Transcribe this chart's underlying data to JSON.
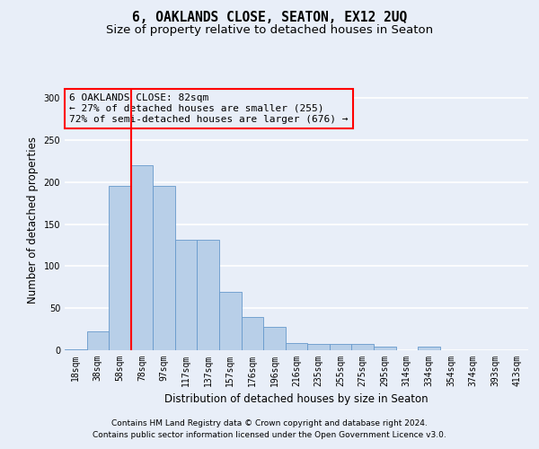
{
  "title": "6, OAKLANDS CLOSE, SEATON, EX12 2UQ",
  "subtitle": "Size of property relative to detached houses in Seaton",
  "xlabel": "Distribution of detached houses by size in Seaton",
  "ylabel": "Number of detached properties",
  "categories": [
    "18sqm",
    "38sqm",
    "58sqm",
    "78sqm",
    "97sqm",
    "117sqm",
    "137sqm",
    "157sqm",
    "176sqm",
    "196sqm",
    "216sqm",
    "235sqm",
    "255sqm",
    "275sqm",
    "295sqm",
    "314sqm",
    "334sqm",
    "354sqm",
    "374sqm",
    "393sqm",
    "413sqm"
  ],
  "values": [
    1,
    22,
    196,
    220,
    196,
    132,
    132,
    70,
    40,
    28,
    9,
    8,
    7,
    7,
    4,
    0,
    4,
    0,
    0,
    0,
    0
  ],
  "bar_color": "#b8cfe8",
  "bar_edge_color": "#6699cc",
  "red_line_index": 3,
  "annotation_text": "6 OAKLANDS CLOSE: 82sqm\n← 27% of detached houses are smaller (255)\n72% of semi-detached houses are larger (676) →",
  "ylim": [
    0,
    310
  ],
  "yticks": [
    0,
    50,
    100,
    150,
    200,
    250,
    300
  ],
  "footer_line1": "Contains HM Land Registry data © Crown copyright and database right 2024.",
  "footer_line2": "Contains public sector information licensed under the Open Government Licence v3.0.",
  "bg_color": "#e8eef8",
  "grid_color": "#ffffff",
  "title_fontsize": 10.5,
  "subtitle_fontsize": 9.5,
  "axis_label_fontsize": 8.5,
  "tick_fontsize": 7,
  "footer_fontsize": 6.5,
  "annotation_fontsize": 8
}
